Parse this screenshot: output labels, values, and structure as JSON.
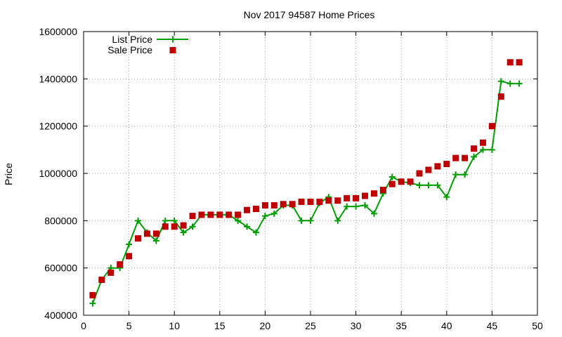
{
  "chart_data": {
    "type": "line",
    "title": "Nov 2017 94587 Home Prices",
    "xlabel": "",
    "ylabel": "Price",
    "xlim": [
      0,
      50
    ],
    "ylim": [
      400000,
      1600000
    ],
    "x_ticks": [
      "0",
      "5",
      "10",
      "15",
      "20",
      "25",
      "30",
      "35",
      "40",
      "45",
      "50"
    ],
    "y_ticks": [
      "400000",
      "600000",
      "800000",
      "1000000",
      "1200000",
      "1400000",
      "1600000"
    ],
    "grid": true,
    "legend_position": "top-left",
    "series": [
      {
        "name": "List Price",
        "style": "line-with-plus-markers",
        "color": "#009e00",
        "x": [
          1,
          2,
          3,
          4,
          5,
          6,
          7,
          8,
          9,
          10,
          11,
          12,
          13,
          14,
          15,
          16,
          17,
          18,
          19,
          20,
          21,
          22,
          23,
          24,
          25,
          26,
          27,
          28,
          29,
          30,
          31,
          32,
          33,
          34,
          35,
          36,
          37,
          38,
          39,
          40,
          41,
          42,
          43,
          44,
          45,
          46,
          47,
          48
        ],
        "y": [
          450000,
          550000,
          600000,
          600000,
          700000,
          800000,
          750000,
          715000,
          800000,
          800000,
          750000,
          775000,
          825000,
          825000,
          825000,
          825000,
          800000,
          775000,
          750000,
          820000,
          830000,
          865000,
          865000,
          800000,
          800000,
          875000,
          900000,
          800000,
          860000,
          860000,
          865000,
          830000,
          915000,
          985000,
          965000,
          960000,
          950000,
          950000,
          950000,
          900000,
          995000,
          995000,
          1070000,
          1100000,
          1100000,
          1390000,
          1380000,
          1380000
        ]
      },
      {
        "name": "Sale Price",
        "style": "square-markers",
        "color": "#c00000",
        "x": [
          1,
          2,
          3,
          4,
          5,
          6,
          7,
          8,
          9,
          10,
          11,
          12,
          13,
          14,
          15,
          16,
          17,
          18,
          19,
          20,
          21,
          22,
          23,
          24,
          25,
          26,
          27,
          28,
          29,
          30,
          31,
          32,
          33,
          34,
          35,
          36,
          37,
          38,
          39,
          40,
          41,
          42,
          43,
          44,
          45,
          46,
          47,
          48
        ],
        "y": [
          485000,
          550000,
          580000,
          615000,
          650000,
          725000,
          745000,
          745000,
          775000,
          775000,
          780000,
          820000,
          825000,
          825000,
          825000,
          825000,
          825000,
          845000,
          850000,
          865000,
          865000,
          870000,
          870000,
          880000,
          880000,
          880000,
          885000,
          885000,
          895000,
          895000,
          905000,
          915000,
          930000,
          955000,
          965000,
          965000,
          1000000,
          1015000,
          1030000,
          1040000,
          1065000,
          1065000,
          1105000,
          1130000,
          1200000,
          1325000,
          1470000,
          1470000
        ]
      }
    ]
  }
}
